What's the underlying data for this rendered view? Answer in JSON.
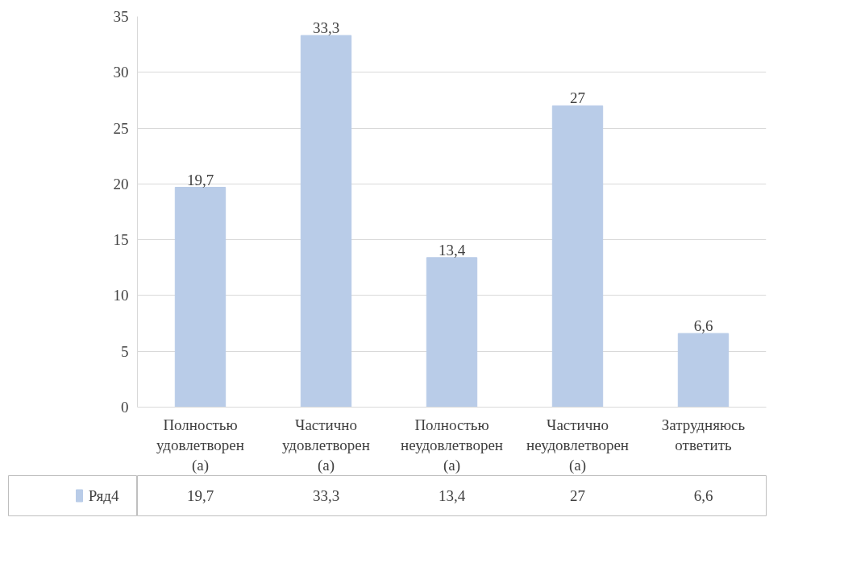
{
  "chart_data": {
    "type": "bar",
    "categories": [
      "Полностью удовлетворен (а)",
      "Частично удовлетворен (а)",
      "Полностью неудовлетворен (а)",
      "Частично неудовлетворен (а)",
      "Затрудняюсь ответить"
    ],
    "series": [
      {
        "name": "Ряд4",
        "color": "#b9cce8",
        "values": [
          19.7,
          33.3,
          13.4,
          27,
          6.6
        ],
        "value_labels": [
          "19,7",
          "33,3",
          "13,4",
          "27",
          "6,6"
        ]
      }
    ],
    "ylim": [
      0,
      35
    ],
    "yticks": [
      0,
      5,
      10,
      15,
      20,
      25,
      30,
      35
    ],
    "grid": "y",
    "legend": "bottom"
  }
}
